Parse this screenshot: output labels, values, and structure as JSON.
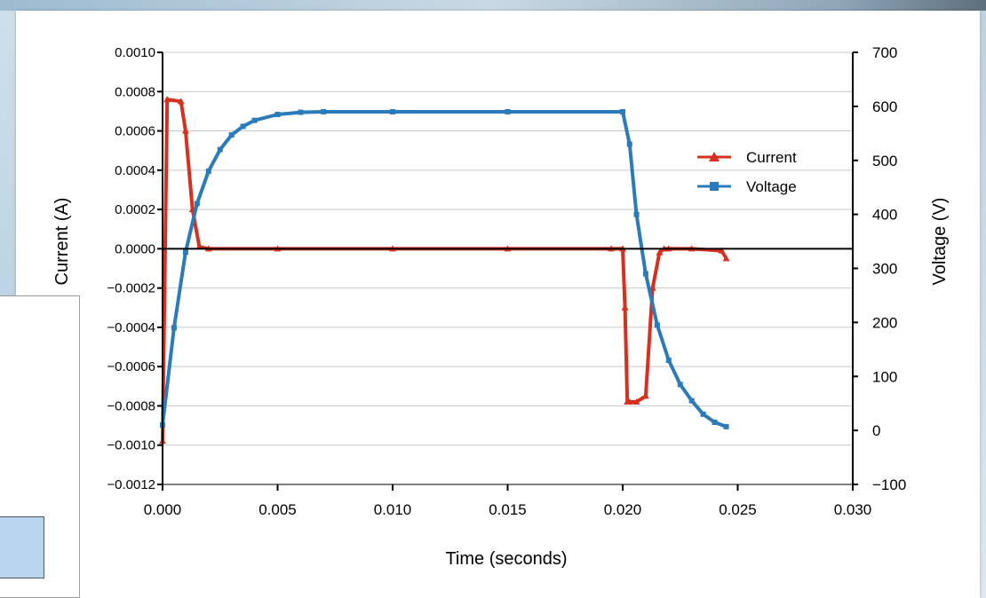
{
  "chart_data": {
    "type": "line",
    "xlabel": "Time (seconds)",
    "ylabel_left": "Current (A)",
    "ylabel_right": "Voltage (V)",
    "xlim": [
      0,
      0.03
    ],
    "ylim_left": [
      -0.0012,
      0.001
    ],
    "ylim_right": [
      -100,
      700
    ],
    "x_ticks": [
      "0.000",
      "0.005",
      "0.010",
      "0.015",
      "0.020",
      "0.025",
      "0.030"
    ],
    "y_ticks_left": [
      "0.0010",
      "0.0008",
      "0.0006",
      "0.0004",
      "0.0002",
      "0.0000",
      "−0.0002",
      "−0.0004",
      "−0.0006",
      "−0.0008",
      "−0.0010",
      "−0.0012"
    ],
    "y_ticks_right": [
      "700",
      "600",
      "500",
      "400",
      "300",
      "200",
      "100",
      "0",
      "−100"
    ],
    "grid": "horizontal",
    "legend_position": "upper-right",
    "series": [
      {
        "name": "Current",
        "axis": "left",
        "color": "#d7301f",
        "marker": "triangle",
        "x": [
          0,
          0.0002,
          0.0008,
          0.001,
          0.0013,
          0.0016,
          0.002,
          0.005,
          0.01,
          0.015,
          0.0195,
          0.02,
          0.0201,
          0.0202,
          0.0203,
          0.0206,
          0.021,
          0.0213,
          0.0216,
          0.0218,
          0.022,
          0.023,
          0.0243,
          0.0245
        ],
        "y": [
          -0.00098,
          0.00076,
          0.00075,
          0.0006,
          0.0002,
          1e-05,
          0.0,
          0.0,
          0.0,
          0.0,
          0.0,
          0.0,
          -0.0003,
          -0.00078,
          -0.00078,
          -0.00078,
          -0.00075,
          -0.0002,
          -2e-05,
          0.0,
          0.0,
          0.0,
          -1e-05,
          -5e-05
        ]
      },
      {
        "name": "Voltage",
        "axis": "right",
        "color": "#2b7bba",
        "marker": "square",
        "x": [
          0,
          0.0005,
          0.001,
          0.0015,
          0.002,
          0.0025,
          0.003,
          0.0035,
          0.004,
          0.005,
          0.006,
          0.007,
          0.01,
          0.015,
          0.02,
          0.0203,
          0.0206,
          0.021,
          0.0215,
          0.022,
          0.0225,
          0.023,
          0.0235,
          0.024,
          0.0245
        ],
        "y": [
          10,
          190,
          330,
          420,
          480,
          520,
          547,
          563,
          574,
          585,
          589,
          590,
          590,
          590,
          590,
          530,
          400,
          290,
          195,
          130,
          85,
          55,
          30,
          15,
          7
        ]
      }
    ]
  }
}
